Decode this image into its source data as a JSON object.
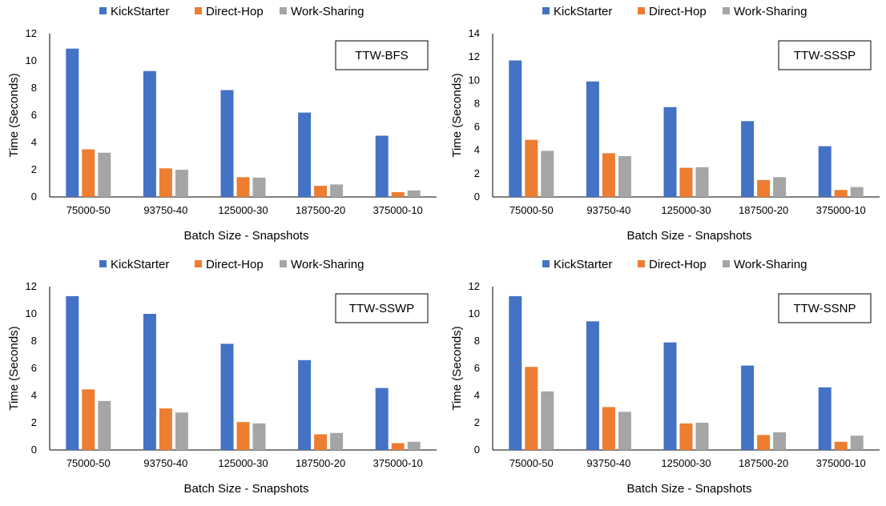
{
  "chart_data": [
    {
      "type": "bar",
      "title": "",
      "label": "TTW-BFS",
      "xlabel": "Batch Size - Snapshots",
      "ylabel": "Time (Seconds)",
      "ylim": [
        0,
        12
      ],
      "ytick_step": 2,
      "yticks": [
        "0",
        "2",
        "4",
        "6",
        "8",
        "10",
        "12"
      ],
      "categories": [
        "75000-50",
        "93750-40",
        "125000-30",
        "187500-20",
        "375000-10"
      ],
      "legend_position": "top",
      "grid": false,
      "series": [
        {
          "name": "KickStarter",
          "color": "#4472C4",
          "values": [
            10.9,
            9.25,
            7.85,
            6.2,
            4.5
          ]
        },
        {
          "name": "Direct-Hop",
          "color": "#ED7D31",
          "values": [
            3.5,
            2.1,
            1.45,
            0.82,
            0.35
          ]
        },
        {
          "name": "Work-Sharing",
          "color": "#A5A5A5",
          "values": [
            3.25,
            2.0,
            1.42,
            0.92,
            0.48
          ]
        }
      ]
    },
    {
      "type": "bar",
      "title": "",
      "label": "TTW-SSSP",
      "xlabel": "Batch Size - Snapshots",
      "ylabel": "Time (Seconds)",
      "ylim": [
        0,
        14
      ],
      "ytick_step": 2,
      "yticks": [
        "0",
        "2",
        "4",
        "6",
        "8",
        "10",
        "12",
        "14"
      ],
      "categories": [
        "75000-50",
        "93750-40",
        "125000-30",
        "187500-20",
        "375000-10"
      ],
      "legend_position": "top",
      "grid": false,
      "series": [
        {
          "name": "KickStarter",
          "color": "#4472C4",
          "values": [
            11.7,
            9.9,
            7.7,
            6.5,
            4.35
          ]
        },
        {
          "name": "Direct-Hop",
          "color": "#ED7D31",
          "values": [
            4.9,
            3.75,
            2.5,
            1.45,
            0.6
          ]
        },
        {
          "name": "Work-Sharing",
          "color": "#A5A5A5",
          "values": [
            3.95,
            3.5,
            2.55,
            1.7,
            0.85
          ]
        }
      ]
    },
    {
      "type": "bar",
      "title": "",
      "label": "TTW-SSWP",
      "xlabel": "Batch Size - Snapshots",
      "ylabel": "Time (Seconds)",
      "ylim": [
        0,
        12
      ],
      "ytick_step": 2,
      "yticks": [
        "0",
        "2",
        "4",
        "6",
        "8",
        "10",
        "12"
      ],
      "categories": [
        "75000-50",
        "93750-40",
        "125000-30",
        "187500-20",
        "375000-10"
      ],
      "legend_position": "top",
      "grid": false,
      "series": [
        {
          "name": "KickStarter",
          "color": "#4472C4",
          "values": [
            11.3,
            10.0,
            7.8,
            6.6,
            4.55
          ]
        },
        {
          "name": "Direct-Hop",
          "color": "#ED7D31",
          "values": [
            4.45,
            3.05,
            2.05,
            1.15,
            0.5
          ]
        },
        {
          "name": "Work-Sharing",
          "color": "#A5A5A5",
          "values": [
            3.6,
            2.75,
            1.95,
            1.25,
            0.6
          ]
        }
      ]
    },
    {
      "type": "bar",
      "title": "",
      "label": "TTW-SSNP",
      "xlabel": "Batch Size - Snapshots",
      "ylabel": "Time (Seconds)",
      "ylim": [
        0,
        12
      ],
      "ytick_step": 2,
      "yticks": [
        "0",
        "2",
        "4",
        "6",
        "8",
        "10",
        "12"
      ],
      "categories": [
        "75000-50",
        "93750-40",
        "125000-30",
        "187500-20",
        "375000-10"
      ],
      "legend_position": "top",
      "grid": false,
      "series": [
        {
          "name": "KickStarter",
          "color": "#4472C4",
          "values": [
            11.3,
            9.45,
            7.9,
            6.2,
            4.6
          ]
        },
        {
          "name": "Direct-Hop",
          "color": "#ED7D31",
          "values": [
            6.1,
            3.15,
            1.95,
            1.1,
            0.6
          ]
        },
        {
          "name": "Work-Sharing",
          "color": "#A5A5A5",
          "values": [
            4.3,
            2.8,
            2.0,
            1.3,
            1.05
          ]
        }
      ]
    }
  ]
}
